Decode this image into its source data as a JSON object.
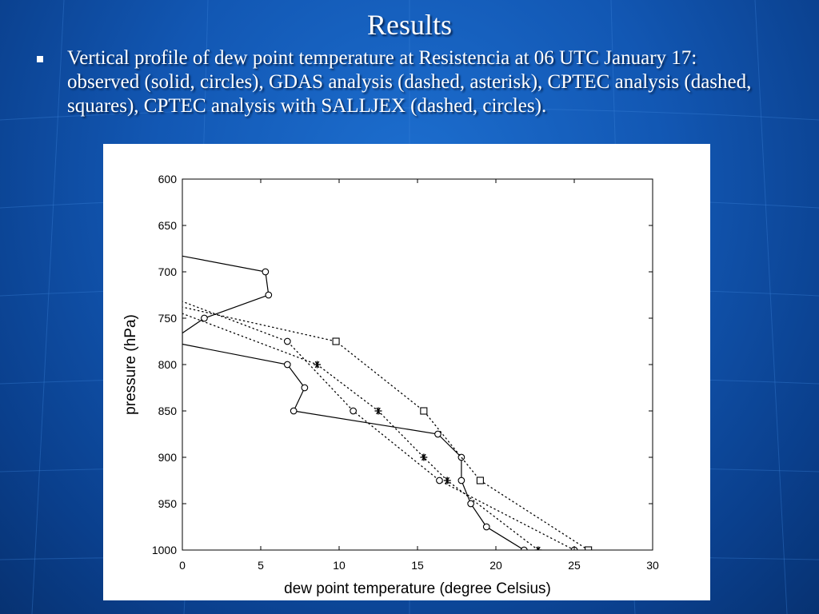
{
  "slide": {
    "title": "Results",
    "bullet_text": "Vertical profile of dew point temperature at Resistencia at 06 UTC January 17: observed (solid, circles), GDAS analysis (dashed, asterisk), CPTEC analysis (dashed, squares), CPTEC analysis with SALLJEX (dashed, circles).",
    "colors": {
      "background": "#1257b3",
      "text": "#ffffff",
      "panel": "#ffffff"
    }
  },
  "chart_data": {
    "type": "line",
    "title": "",
    "xlabel": "dew point temperature (degree Celsius)",
    "ylabel": "pressure (hPa)",
    "xlim": [
      0,
      30
    ],
    "ylim": [
      1000,
      600
    ],
    "y_reversed": true,
    "x_ticks": [
      "0",
      "5",
      "10",
      "15",
      "20",
      "25",
      "30"
    ],
    "y_ticks": [
      "600",
      "650",
      "700",
      "750",
      "800",
      "850",
      "900",
      "950",
      "1000"
    ],
    "grid": false,
    "series": [
      {
        "style": "solid",
        "marker": "circle",
        "points": [
          [
            21.8,
            1000
          ],
          [
            19.4,
            975
          ],
          [
            18.4,
            950
          ],
          [
            17.8,
            925
          ],
          [
            17.8,
            900
          ],
          [
            16.3,
            875
          ],
          [
            7.1,
            850
          ],
          [
            7.8,
            825
          ],
          [
            6.7,
            800
          ],
          [
            0,
            778
          ],
          [
            0,
            766
          ],
          [
            1.4,
            750
          ],
          [
            5.5,
            725
          ],
          [
            5.3,
            700
          ],
          [
            0,
            683
          ]
        ],
        "marker_points": [
          [
            21.8,
            1000
          ],
          [
            19.4,
            975
          ],
          [
            18.4,
            950
          ],
          [
            17.8,
            925
          ],
          [
            17.8,
            900
          ],
          [
            16.3,
            875
          ],
          [
            7.1,
            850
          ],
          [
            7.8,
            825
          ],
          [
            6.7,
            800
          ],
          [
            1.4,
            750
          ],
          [
            5.5,
            725
          ],
          [
            5.3,
            700
          ]
        ]
      },
      {
        "style": "dotted",
        "marker": "asterisk",
        "points": [
          [
            22.7,
            1000
          ],
          [
            16.9,
            925
          ],
          [
            15.4,
            900
          ],
          [
            12.5,
            850
          ],
          [
            8.6,
            800
          ],
          [
            0,
            745
          ]
        ],
        "marker_points": [
          [
            22.7,
            1000
          ],
          [
            16.9,
            925
          ],
          [
            15.4,
            900
          ],
          [
            12.5,
            850
          ],
          [
            8.6,
            800
          ]
        ]
      },
      {
        "style": "dotted",
        "marker": "square",
        "points": [
          [
            25.9,
            1000
          ],
          [
            19.0,
            925
          ],
          [
            15.4,
            850
          ],
          [
            9.8,
            775
          ],
          [
            0,
            738
          ]
        ],
        "marker_points": [
          [
            25.9,
            1000
          ],
          [
            19.0,
            925
          ],
          [
            15.4,
            850
          ],
          [
            9.8,
            775
          ]
        ]
      },
      {
        "style": "dotted",
        "marker": "circle",
        "points": [
          [
            25.0,
            1000
          ],
          [
            16.4,
            925
          ],
          [
            10.9,
            850
          ],
          [
            6.7,
            775
          ],
          [
            0,
            732
          ]
        ],
        "marker_points": [
          [
            25.0,
            1000
          ],
          [
            16.4,
            925
          ],
          [
            10.9,
            850
          ],
          [
            6.7,
            775
          ]
        ]
      }
    ]
  }
}
